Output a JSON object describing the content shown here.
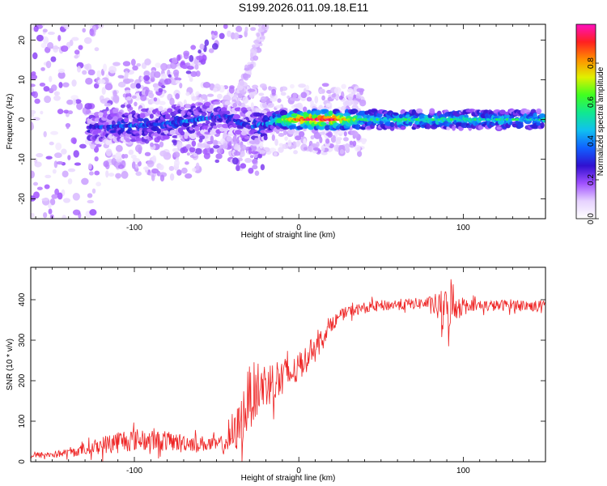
{
  "title": "S199.2026.011.09.18.E11",
  "chart_data": [
    {
      "type": "heatmap",
      "title": "S199.2026.011.09.18.E11",
      "xlabel": "Height of straight line (km)",
      "ylabel": "Frequency (Hz)",
      "xlim": [
        -163,
        150
      ],
      "ylim": [
        -25,
        24
      ],
      "xticks": [
        "-100",
        "0",
        "100"
      ],
      "xtick_values": [
        -100,
        0,
        100
      ],
      "yticks": [
        "20",
        "10",
        "0",
        "-10",
        "-20"
      ],
      "ytick_values": [
        20,
        10,
        0,
        -10,
        -20
      ],
      "colorbar": {
        "label": "Normalized spectral amplitude",
        "range": [
          0,
          1
        ],
        "ticks": [
          "0.0",
          "0.2",
          "0.4",
          "0.6",
          "0.8"
        ],
        "tick_values": [
          0.0,
          0.2,
          0.4,
          0.6,
          0.8
        ],
        "colormap": [
          "#ffffff",
          "#e6d2ff",
          "#a050ff",
          "#3010d0",
          "#1060ff",
          "#10c0f0",
          "#10e890",
          "#40ff20",
          "#e0f000",
          "#ff9000",
          "#ff2020",
          "#ff10c0"
        ]
      },
      "signal_band": {
        "description_points_km": [
          -125,
          -100,
          -80,
          -60,
          -45,
          -30,
          -20,
          -10,
          0,
          20,
          40,
          90,
          150
        ],
        "center_freq_hz": [
          -2,
          -1.5,
          -1,
          0,
          1,
          -2,
          -1,
          0,
          0,
          0,
          0,
          0,
          0
        ],
        "amplitude": [
          0.25,
          0.3,
          0.3,
          0.3,
          0.25,
          0.25,
          0.35,
          0.6,
          0.85,
          0.9,
          0.5,
          0.5,
          0.45
        ]
      }
    },
    {
      "type": "line",
      "xlabel": "Height of straight line (km)",
      "ylabel": "SNR (10 * v/v)",
      "xlim": [
        -163,
        150
      ],
      "ylim": [
        0,
        480
      ],
      "xticks": [
        "-100",
        "0",
        "100"
      ],
      "xtick_values": [
        -100,
        0,
        100
      ],
      "yticks": [
        "0",
        "100",
        "200",
        "300",
        "400"
      ],
      "ytick_values": [
        0,
        100,
        200,
        300,
        400
      ],
      "series": [
        {
          "name": "SNR",
          "color": "#ee2222",
          "x": [
            -163,
            -150,
            -140,
            -130,
            -120,
            -110,
            -100,
            -90,
            -80,
            -70,
            -60,
            -50,
            -45,
            -40,
            -35,
            -30,
            -25,
            -20,
            -15,
            -10,
            -5,
            0,
            5,
            10,
            15,
            20,
            25,
            30,
            40,
            50,
            60,
            70,
            80,
            85,
            90,
            95,
            100,
            110,
            120,
            130,
            140,
            150
          ],
          "y": [
            15,
            18,
            22,
            30,
            40,
            50,
            55,
            52,
            50,
            48,
            45,
            42,
            45,
            60,
            100,
            160,
            180,
            190,
            200,
            210,
            215,
            230,
            260,
            290,
            310,
            340,
            360,
            370,
            380,
            385,
            388,
            390,
            392,
            380,
            370,
            385,
            390,
            385,
            385,
            388,
            385,
            385
          ],
          "noise": [
            8,
            8,
            10,
            14,
            22,
            30,
            28,
            26,
            24,
            22,
            20,
            18,
            22,
            40,
            70,
            80,
            70,
            60,
            55,
            50,
            40,
            35,
            30,
            25,
            20,
            18,
            15,
            15,
            14,
            14,
            14,
            14,
            16,
            40,
            60,
            40,
            16,
            14,
            14,
            14,
            14,
            14
          ]
        }
      ]
    }
  ]
}
